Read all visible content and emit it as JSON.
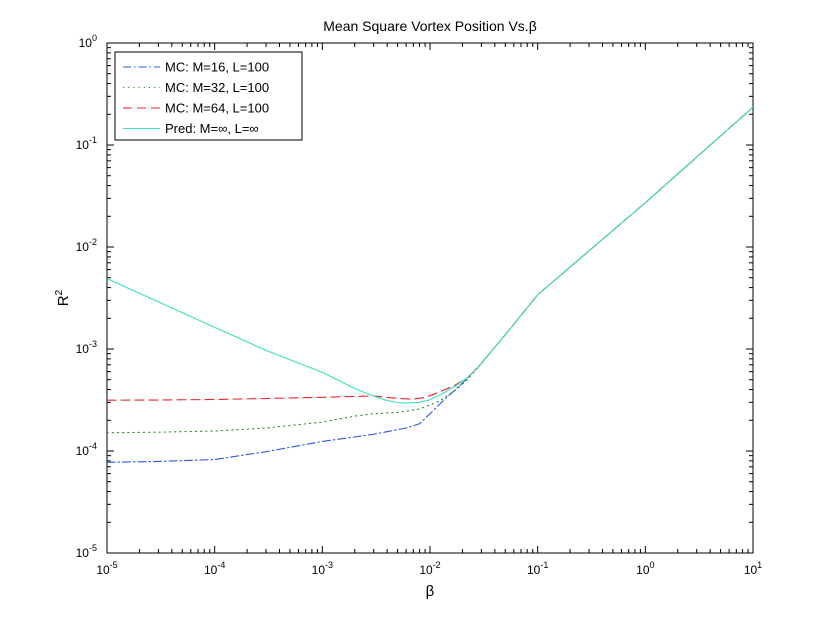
{
  "chart_data": {
    "type": "line",
    "title": "Mean Square Vortex Position Vs.β",
    "xlabel": "β",
    "ylabel": "R",
    "ylabel_sup": "2",
    "xscale": "log",
    "yscale": "log",
    "xlim": [
      1e-05,
      10
    ],
    "ylim": [
      1e-05,
      1
    ],
    "grid": false,
    "legend_position": "top-left",
    "x_ticks": [
      {
        "base": "10",
        "exp": "-5",
        "value": 1e-05
      },
      {
        "base": "10",
        "exp": "-4",
        "value": 0.0001
      },
      {
        "base": "10",
        "exp": "-3",
        "value": 0.001
      },
      {
        "base": "10",
        "exp": "-2",
        "value": 0.01
      },
      {
        "base": "10",
        "exp": "-1",
        "value": 0.1
      },
      {
        "base": "10",
        "exp": "0",
        "value": 1
      },
      {
        "base": "10",
        "exp": "1",
        "value": 10
      }
    ],
    "y_ticks": [
      {
        "base": "10",
        "exp": "-5",
        "value": 1e-05
      },
      {
        "base": "10",
        "exp": "-4",
        "value": 0.0001
      },
      {
        "base": "10",
        "exp": "-3",
        "value": 0.001
      },
      {
        "base": "10",
        "exp": "-2",
        "value": 0.01
      },
      {
        "base": "10",
        "exp": "-1",
        "value": 0.1
      },
      {
        "base": "10",
        "exp": "0",
        "value": 1
      }
    ],
    "series": [
      {
        "name": "MC: M=16, L=100",
        "color": "#2b5cd8",
        "dash": "dash-dot",
        "points": [
          [
            1e-05,
            7.75e-05
          ],
          [
            3e-05,
            7.9e-05
          ],
          [
            0.0001,
            8.25e-05
          ],
          [
            0.0003,
            9.85e-05
          ],
          [
            0.001,
            0.000124
          ],
          [
            0.003,
            0.000146
          ],
          [
            0.006,
            0.000168
          ],
          [
            0.008,
            0.000185
          ],
          [
            0.01,
            0.000232
          ],
          [
            0.013,
            0.000305
          ],
          [
            0.017,
            0.000395
          ],
          [
            0.022,
            0.00051
          ],
          [
            0.028,
            0.00067
          ],
          [
            0.035,
            0.00088
          ],
          [
            0.05,
            0.00138
          ],
          [
            0.1,
            0.0034
          ],
          [
            1,
            0.0272
          ],
          [
            10,
            0.235
          ]
        ]
      },
      {
        "name": "MC: M=32, L=100",
        "color": "#2a8a2a",
        "dash": "dotted",
        "points": [
          [
            1e-05,
            0.000151
          ],
          [
            3e-05,
            0.000153
          ],
          [
            0.0001,
            0.000157
          ],
          [
            0.0003,
            0.000168
          ],
          [
            0.001,
            0.000192
          ],
          [
            0.002,
            0.00022
          ],
          [
            0.003,
            0.000232
          ],
          [
            0.005,
            0.000239
          ],
          [
            0.008,
            0.000258
          ],
          [
            0.012,
            0.000305
          ],
          [
            0.017,
            0.00039
          ],
          [
            0.022,
            0.000495
          ],
          [
            0.028,
            0.00066
          ],
          [
            0.035,
            0.00088
          ],
          [
            0.05,
            0.00138
          ],
          [
            0.1,
            0.0034
          ],
          [
            1,
            0.0272
          ],
          [
            10,
            0.235
          ]
        ]
      },
      {
        "name": "MC: M=64, L=100",
        "color": "#e8262b",
        "dash": "dashed",
        "points": [
          [
            1e-05,
            0.000315
          ],
          [
            3e-05,
            0.000316
          ],
          [
            0.0001,
            0.00032
          ],
          [
            0.0003,
            0.000327
          ],
          [
            0.001,
            0.000336
          ],
          [
            0.002,
            0.000343
          ],
          [
            0.003,
            0.000346
          ],
          [
            0.005,
            0.000328
          ],
          [
            0.007,
            0.000322
          ],
          [
            0.009,
            0.000335
          ],
          [
            0.012,
            0.000375
          ],
          [
            0.017,
            0.00044
          ],
          [
            0.022,
            0.00052
          ],
          [
            0.028,
            0.00066
          ],
          [
            0.035,
            0.00088
          ],
          [
            0.05,
            0.00138
          ],
          [
            0.1,
            0.0034
          ],
          [
            1,
            0.0272
          ],
          [
            10,
            0.235
          ]
        ]
      },
      {
        "name": "Pred: M=∞, L=∞",
        "color": "#3fe0c0",
        "dash": "solid",
        "points": [
          [
            1e-05,
            0.0049
          ],
          [
            0.0001,
            0.00163
          ],
          [
            0.0003,
            0.00097
          ],
          [
            0.001,
            0.00059
          ],
          [
            0.002,
            0.00041
          ],
          [
            0.003,
            0.000345
          ],
          [
            0.004,
            0.000312
          ],
          [
            0.005,
            0.000298
          ],
          [
            0.006,
            0.000295
          ],
          [
            0.008,
            0.0003
          ],
          [
            0.01,
            0.000318
          ],
          [
            0.013,
            0.000365
          ],
          [
            0.017,
            0.00043
          ],
          [
            0.022,
            0.00052
          ],
          [
            0.028,
            0.00066
          ],
          [
            0.035,
            0.00088
          ],
          [
            0.05,
            0.00138
          ],
          [
            0.1,
            0.0034
          ],
          [
            1,
            0.0272
          ],
          [
            10,
            0.235
          ]
        ]
      }
    ]
  }
}
